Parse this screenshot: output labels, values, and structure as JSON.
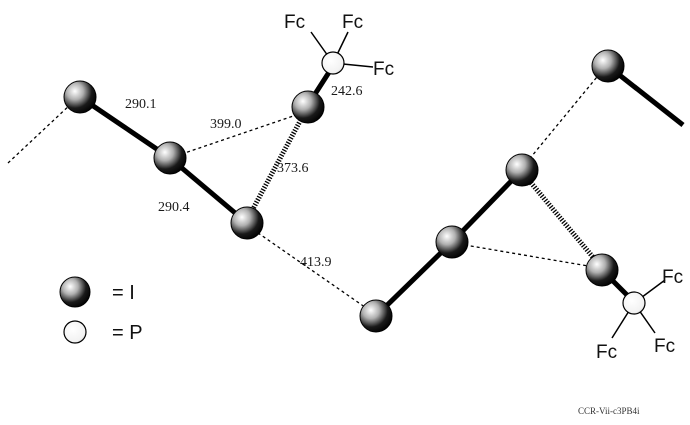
{
  "distances": {
    "d_290_1": "290.1",
    "d_399_0": "399.0",
    "d_242_6": "242.6",
    "d_373_6": "373.6",
    "d_290_4": "290.4",
    "d_413_9": "413.9"
  },
  "substituent": "Fc",
  "legend": {
    "iodine_label": "= I",
    "phosphorus_label": "= P"
  },
  "caption": "CCR-Vii-c3PB4i",
  "colors": {
    "atom_dark": "#000000",
    "atom_light": "#ffffff",
    "line": "#000000"
  }
}
